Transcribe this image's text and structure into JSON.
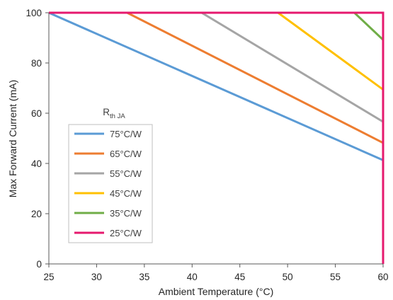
{
  "chart_data": {
    "type": "line",
    "xlabel": "Ambient Temperature (°C)",
    "ylabel": "Max Forward Current (mA)",
    "xlim": [
      25,
      60
    ],
    "ylim": [
      0,
      100
    ],
    "xticks": [
      25,
      30,
      35,
      40,
      45,
      50,
      55,
      60
    ],
    "yticks": [
      0,
      20,
      40,
      60,
      80,
      100
    ],
    "grid": false,
    "legend": {
      "title_main": "R",
      "title_sub": "th JA",
      "placement": "left-middle"
    },
    "series": [
      {
        "name": "75°C/W",
        "color": "#5b9bd5",
        "x": [
          25,
          60,
          60
        ],
        "y": [
          100,
          41.3,
          0
        ]
      },
      {
        "name": "65°C/W",
        "color": "#ed7d31",
        "x": [
          25,
          33.2,
          60,
          60
        ],
        "y": [
          100,
          100,
          48.2,
          0
        ]
      },
      {
        "name": "55°C/W",
        "color": "#a5a5a5",
        "x": [
          25,
          41,
          60,
          60
        ],
        "y": [
          100,
          100,
          56.6,
          0
        ]
      },
      {
        "name": "45°C/W",
        "color": "#ffc000",
        "x": [
          25,
          49,
          60,
          60
        ],
        "y": [
          100,
          100,
          69.4,
          0
        ]
      },
      {
        "name": "35°C/W",
        "color": "#70ad47",
        "x": [
          25,
          57,
          60,
          60
        ],
        "y": [
          100,
          100,
          89.2,
          0
        ]
      },
      {
        "name": "25°C/W",
        "color": "#e6196e",
        "x": [
          25,
          60,
          60
        ],
        "y": [
          100,
          100,
          0
        ]
      }
    ]
  }
}
